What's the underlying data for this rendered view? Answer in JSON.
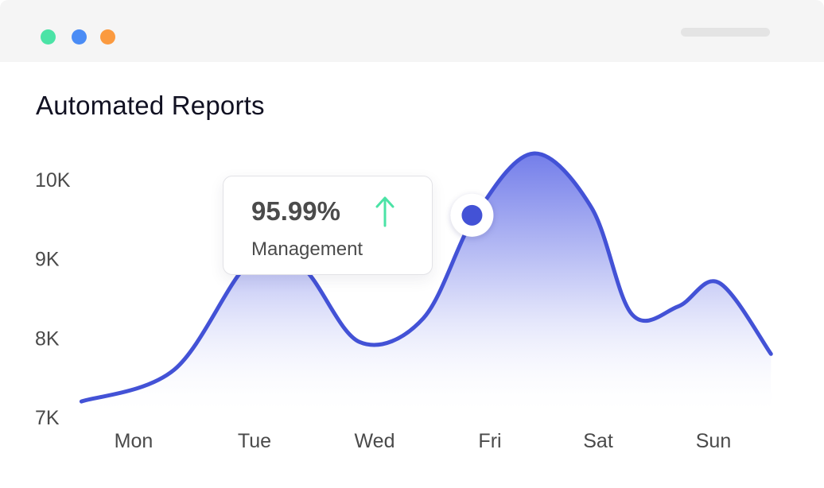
{
  "window": {
    "dots": [
      {
        "name": "green",
        "color": "#4be3a6"
      },
      {
        "name": "blue",
        "color": "#4a8cf5"
      },
      {
        "name": "orange",
        "color": "#fb9a3f"
      }
    ]
  },
  "colors": {
    "line": "#4352d6",
    "area_top": "#5b67e6",
    "area_bottom": "#ffffff",
    "marker": "#4352d6",
    "arrow": "#4be3a6"
  },
  "tooltip": {
    "value": "95.99%",
    "label": "Management",
    "trend_icon": "arrow-up-icon"
  },
  "chart_data": {
    "type": "area",
    "title": "Automated Reports",
    "xlabel": "",
    "ylabel": "",
    "categories": [
      "Mon",
      "Tue",
      "Wed",
      "Fri",
      "Sat",
      "Sun"
    ],
    "y_ticks": [
      "7K",
      "8K",
      "9K",
      "10K"
    ],
    "ylim": [
      7000,
      10000
    ],
    "grid": false,
    "legend": "none",
    "series": [
      {
        "x": [
          -0.45,
          0.35,
          1.0,
          1.45,
          1.95,
          2.5,
          2.95,
          3.45,
          3.95,
          4.3,
          4.7,
          5.05,
          5.5
        ],
        "values": [
          7200,
          7600,
          8950,
          8900,
          7950,
          8250,
          9550,
          10330,
          9650,
          8300,
          8400,
          8700,
          7800
        ]
      }
    ],
    "highlight": {
      "x": 2.92,
      "value": 9550
    }
  }
}
